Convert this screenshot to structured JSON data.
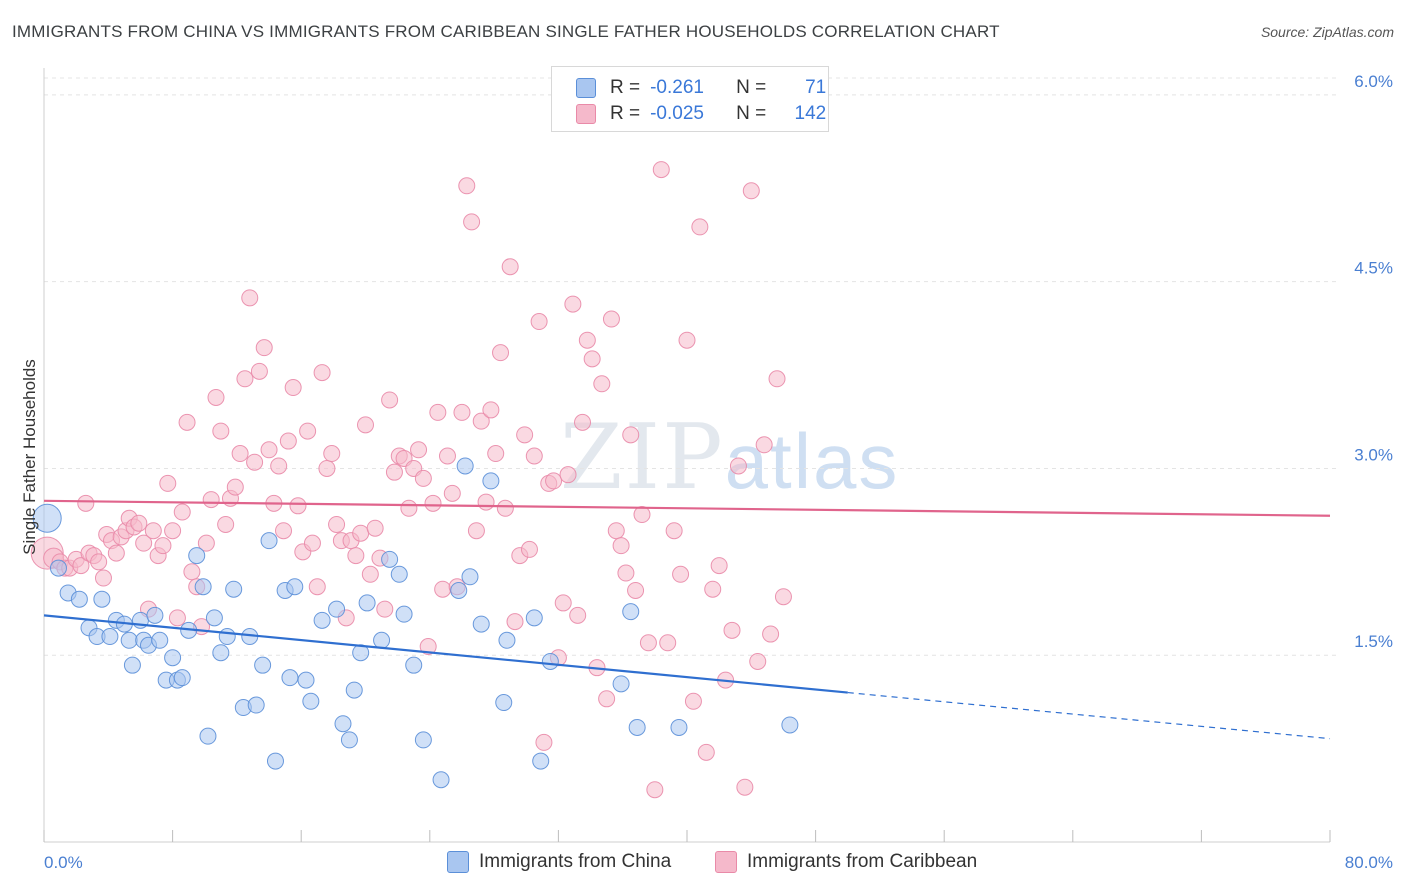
{
  "title": "IMMIGRANTS FROM CHINA VS IMMIGRANTS FROM CARIBBEAN SINGLE FATHER HOUSEHOLDS CORRELATION CHART",
  "source": "Source: ZipAtlas.com",
  "watermark": {
    "zip": "ZIP",
    "atlas": "atlas"
  },
  "legend": {
    "china": {
      "r_label": "R =",
      "r_value": "-0.261",
      "n_label": "N =",
      "n_value": "71"
    },
    "caribbean": {
      "r_label": "R =",
      "r_value": "-0.025",
      "n_label": "N =",
      "n_value": "142"
    }
  },
  "colors": {
    "china_fill": "#a9c6f0",
    "china_stroke": "#5b8fd8",
    "china_line": "#2f6fd0",
    "caribbean_fill": "#f5b9cb",
    "caribbean_stroke": "#e98aa8",
    "caribbean_line": "#e0648c"
  },
  "chart_data": {
    "type": "scatter",
    "title": "IMMIGRANTS FROM CHINA VS IMMIGRANTS FROM CARIBBEAN SINGLE FATHER HOUSEHOLDS CORRELATION CHART",
    "xlabel": "",
    "ylabel": "Single Father Households",
    "xlim": [
      0,
      80
    ],
    "ylim": [
      0,
      6.2
    ],
    "y_ticks": [
      {
        "v": 1.5,
        "label": "1.5%"
      },
      {
        "v": 3.0,
        "label": "3.0%"
      },
      {
        "v": 4.5,
        "label": "4.5%"
      },
      {
        "v": 6.0,
        "label": "6.0%"
      }
    ],
    "x_ticks": [
      0,
      8,
      16,
      24,
      32,
      40,
      48,
      56,
      64,
      72,
      80
    ],
    "x_tick_labels": [
      {
        "v": 0,
        "label": "0.0%"
      },
      {
        "v": 80,
        "label": "80.0%"
      }
    ],
    "series": [
      {
        "name": "Immigrants from China",
        "key": "china",
        "trend": {
          "x0": 0,
          "y0": 1.82,
          "x1": 50,
          "y1": 1.2,
          "dash_to_x": 80,
          "dash_to_y": 0.83
        },
        "points": [
          [
            0.2,
            2.6,
            14
          ],
          [
            0.9,
            2.2,
            8
          ],
          [
            1.5,
            2.0,
            8
          ],
          [
            2.2,
            1.95,
            8
          ],
          [
            2.8,
            1.72,
            8
          ],
          [
            3.3,
            1.65,
            8
          ],
          [
            3.6,
            1.95,
            8
          ],
          [
            4.1,
            1.65,
            8
          ],
          [
            4.5,
            1.78,
            8
          ],
          [
            5.0,
            1.75,
            8
          ],
          [
            5.3,
            1.62,
            8
          ],
          [
            5.5,
            1.42,
            8
          ],
          [
            6.0,
            1.78,
            8
          ],
          [
            6.2,
            1.62,
            8
          ],
          [
            6.5,
            1.58,
            8
          ],
          [
            6.9,
            1.82,
            8
          ],
          [
            7.2,
            1.62,
            8
          ],
          [
            7.6,
            1.3,
            8
          ],
          [
            8.0,
            1.48,
            8
          ],
          [
            8.3,
            1.3,
            8
          ],
          [
            8.6,
            1.32,
            8
          ],
          [
            9.0,
            1.7,
            8
          ],
          [
            9.5,
            2.3,
            8
          ],
          [
            9.9,
            2.05,
            8
          ],
          [
            10.2,
            0.85,
            8
          ],
          [
            10.6,
            1.8,
            8
          ],
          [
            11.0,
            1.52,
            8
          ],
          [
            11.4,
            1.65,
            8
          ],
          [
            11.8,
            2.03,
            8
          ],
          [
            12.4,
            1.08,
            8
          ],
          [
            12.8,
            1.65,
            8
          ],
          [
            13.2,
            1.1,
            8
          ],
          [
            13.6,
            1.42,
            8
          ],
          [
            14.0,
            2.42,
            8
          ],
          [
            14.4,
            0.65,
            8
          ],
          [
            15.0,
            2.02,
            8
          ],
          [
            15.3,
            1.32,
            8
          ],
          [
            15.6,
            2.05,
            8
          ],
          [
            16.3,
            1.3,
            8
          ],
          [
            16.6,
            1.13,
            8
          ],
          [
            17.3,
            1.78,
            8
          ],
          [
            18.2,
            1.87,
            8
          ],
          [
            18.6,
            0.95,
            8
          ],
          [
            19.0,
            0.82,
            8
          ],
          [
            19.3,
            1.22,
            8
          ],
          [
            19.7,
            1.52,
            8
          ],
          [
            20.1,
            1.92,
            8
          ],
          [
            21.0,
            1.62,
            8
          ],
          [
            21.5,
            2.27,
            8
          ],
          [
            22.1,
            2.15,
            8
          ],
          [
            22.4,
            1.83,
            8
          ],
          [
            23.0,
            1.42,
            8
          ],
          [
            23.6,
            0.82,
            8
          ],
          [
            24.7,
            0.5,
            8
          ],
          [
            25.8,
            2.02,
            8
          ],
          [
            26.2,
            3.02,
            8
          ],
          [
            26.5,
            2.13,
            8
          ],
          [
            27.2,
            1.75,
            8
          ],
          [
            27.8,
            2.9,
            8
          ],
          [
            28.6,
            1.12,
            8
          ],
          [
            28.8,
            1.62,
            8
          ],
          [
            30.5,
            1.8,
            8
          ],
          [
            30.9,
            0.65,
            8
          ],
          [
            31.5,
            1.45,
            8
          ],
          [
            35.9,
            1.27,
            8
          ],
          [
            36.5,
            1.85,
            8
          ],
          [
            36.9,
            0.92,
            8
          ],
          [
            39.5,
            0.92,
            8
          ],
          [
            46.4,
            0.94,
            8
          ]
        ]
      },
      {
        "name": "Immigrants from Caribbean",
        "key": "caribbean",
        "trend": {
          "x0": 0,
          "y0": 2.74,
          "x1": 80,
          "y1": 2.62
        },
        "points": [
          [
            0.2,
            2.32,
            16
          ],
          [
            0.6,
            2.28,
            10
          ],
          [
            1.0,
            2.25,
            8
          ],
          [
            1.3,
            2.2,
            8
          ],
          [
            1.6,
            2.2,
            8
          ],
          [
            2.0,
            2.27,
            8
          ],
          [
            2.3,
            2.22,
            8
          ],
          [
            2.6,
            2.72,
            8
          ],
          [
            2.8,
            2.32,
            8
          ],
          [
            3.1,
            2.3,
            8
          ],
          [
            3.4,
            2.25,
            8
          ],
          [
            3.7,
            2.12,
            8
          ],
          [
            3.9,
            2.47,
            8
          ],
          [
            4.2,
            2.42,
            8
          ],
          [
            4.5,
            2.32,
            8
          ],
          [
            4.8,
            2.45,
            8
          ],
          [
            5.1,
            2.5,
            8
          ],
          [
            5.3,
            2.6,
            8
          ],
          [
            5.6,
            2.53,
            8
          ],
          [
            5.9,
            2.56,
            8
          ],
          [
            6.2,
            2.4,
            8
          ],
          [
            6.5,
            1.87,
            8
          ],
          [
            6.8,
            2.5,
            8
          ],
          [
            7.1,
            2.3,
            8
          ],
          [
            7.4,
            2.38,
            8
          ],
          [
            7.7,
            2.88,
            8
          ],
          [
            8.0,
            2.5,
            8
          ],
          [
            8.3,
            1.8,
            8
          ],
          [
            8.6,
            2.65,
            8
          ],
          [
            8.9,
            3.37,
            8
          ],
          [
            9.2,
            2.17,
            8
          ],
          [
            9.5,
            2.05,
            8
          ],
          [
            9.8,
            1.73,
            8
          ],
          [
            10.1,
            2.4,
            8
          ],
          [
            10.4,
            2.75,
            8
          ],
          [
            10.7,
            3.57,
            8
          ],
          [
            11.0,
            3.3,
            8
          ],
          [
            11.3,
            2.55,
            8
          ],
          [
            11.6,
            2.76,
            8
          ],
          [
            11.9,
            2.85,
            8
          ],
          [
            12.2,
            3.12,
            8
          ],
          [
            12.5,
            3.72,
            8
          ],
          [
            12.8,
            4.37,
            8
          ],
          [
            13.1,
            3.05,
            8
          ],
          [
            13.4,
            3.78,
            8
          ],
          [
            13.7,
            3.97,
            8
          ],
          [
            14.0,
            3.15,
            8
          ],
          [
            14.3,
            2.72,
            8
          ],
          [
            14.6,
            3.02,
            8
          ],
          [
            14.9,
            2.5,
            8
          ],
          [
            15.2,
            3.22,
            8
          ],
          [
            15.5,
            3.65,
            8
          ],
          [
            15.8,
            2.7,
            8
          ],
          [
            16.1,
            2.33,
            8
          ],
          [
            16.4,
            3.3,
            8
          ],
          [
            16.7,
            2.4,
            8
          ],
          [
            17.0,
            2.05,
            8
          ],
          [
            17.3,
            3.77,
            8
          ],
          [
            17.6,
            3.0,
            8
          ],
          [
            17.9,
            3.12,
            8
          ],
          [
            18.2,
            2.55,
            8
          ],
          [
            18.5,
            2.42,
            8
          ],
          [
            18.8,
            1.8,
            8
          ],
          [
            19.1,
            2.42,
            8
          ],
          [
            19.4,
            2.3,
            8
          ],
          [
            19.7,
            2.48,
            8
          ],
          [
            20.0,
            3.35,
            8
          ],
          [
            20.3,
            2.15,
            8
          ],
          [
            20.6,
            2.52,
            8
          ],
          [
            20.9,
            2.28,
            8
          ],
          [
            21.2,
            1.87,
            8
          ],
          [
            21.5,
            3.55,
            8
          ],
          [
            21.8,
            2.97,
            8
          ],
          [
            22.1,
            3.1,
            8
          ],
          [
            22.4,
            3.08,
            8
          ],
          [
            22.7,
            2.68,
            8
          ],
          [
            23.0,
            3.0,
            8
          ],
          [
            23.3,
            3.15,
            8
          ],
          [
            23.6,
            2.92,
            8
          ],
          [
            23.9,
            1.57,
            8
          ],
          [
            24.2,
            2.72,
            8
          ],
          [
            24.5,
            3.45,
            8
          ],
          [
            24.8,
            2.03,
            8
          ],
          [
            25.1,
            3.1,
            8
          ],
          [
            25.4,
            2.8,
            8
          ],
          [
            25.7,
            2.05,
            8
          ],
          [
            26.0,
            3.45,
            8
          ],
          [
            26.3,
            5.27,
            8
          ],
          [
            26.6,
            4.98,
            8
          ],
          [
            26.9,
            2.5,
            8
          ],
          [
            27.2,
            3.38,
            8
          ],
          [
            27.5,
            2.73,
            8
          ],
          [
            27.8,
            3.47,
            8
          ],
          [
            28.1,
            3.12,
            8
          ],
          [
            28.4,
            3.93,
            8
          ],
          [
            28.7,
            2.68,
            8
          ],
          [
            29.0,
            4.62,
            8
          ],
          [
            29.3,
            1.77,
            8
          ],
          [
            29.6,
            2.3,
            8
          ],
          [
            29.9,
            3.27,
            8
          ],
          [
            30.2,
            2.35,
            8
          ],
          [
            30.5,
            3.1,
            8
          ],
          [
            30.8,
            4.18,
            8
          ],
          [
            31.1,
            0.8,
            8
          ],
          [
            31.4,
            2.88,
            8
          ],
          [
            31.7,
            2.9,
            8
          ],
          [
            32.0,
            1.48,
            8
          ],
          [
            32.3,
            1.92,
            8
          ],
          [
            32.6,
            2.95,
            8
          ],
          [
            32.9,
            4.32,
            8
          ],
          [
            33.2,
            1.82,
            8
          ],
          [
            33.5,
            3.37,
            8
          ],
          [
            33.8,
            4.03,
            8
          ],
          [
            34.1,
            3.88,
            8
          ],
          [
            34.4,
            1.4,
            8
          ],
          [
            34.7,
            3.68,
            8
          ],
          [
            35.0,
            1.15,
            8
          ],
          [
            35.3,
            4.2,
            8
          ],
          [
            35.6,
            2.5,
            8
          ],
          [
            35.9,
            2.38,
            8
          ],
          [
            36.2,
            2.16,
            8
          ],
          [
            36.5,
            3.27,
            8
          ],
          [
            36.8,
            2.02,
            8
          ],
          [
            37.2,
            2.63,
            8
          ],
          [
            37.6,
            1.6,
            8
          ],
          [
            38.0,
            0.42,
            8
          ],
          [
            38.4,
            5.4,
            8
          ],
          [
            38.8,
            1.6,
            8
          ],
          [
            39.2,
            2.5,
            8
          ],
          [
            39.6,
            2.15,
            8
          ],
          [
            40.0,
            4.03,
            8
          ],
          [
            40.4,
            1.13,
            8
          ],
          [
            40.8,
            4.94,
            8
          ],
          [
            41.2,
            0.72,
            8
          ],
          [
            41.6,
            2.03,
            8
          ],
          [
            42.0,
            2.22,
            8
          ],
          [
            42.4,
            1.3,
            8
          ],
          [
            42.8,
            1.7,
            8
          ],
          [
            43.2,
            3.02,
            8
          ],
          [
            43.6,
            0.44,
            8
          ],
          [
            44.0,
            5.23,
            8
          ],
          [
            44.4,
            1.45,
            8
          ],
          [
            44.8,
            3.19,
            8
          ],
          [
            45.2,
            1.67,
            8
          ],
          [
            45.6,
            3.72,
            8
          ],
          [
            46.0,
            1.97,
            8
          ]
        ]
      }
    ]
  },
  "bottom_legend": {
    "china": "Immigrants from China",
    "caribbean": "Immigrants from Caribbean"
  }
}
